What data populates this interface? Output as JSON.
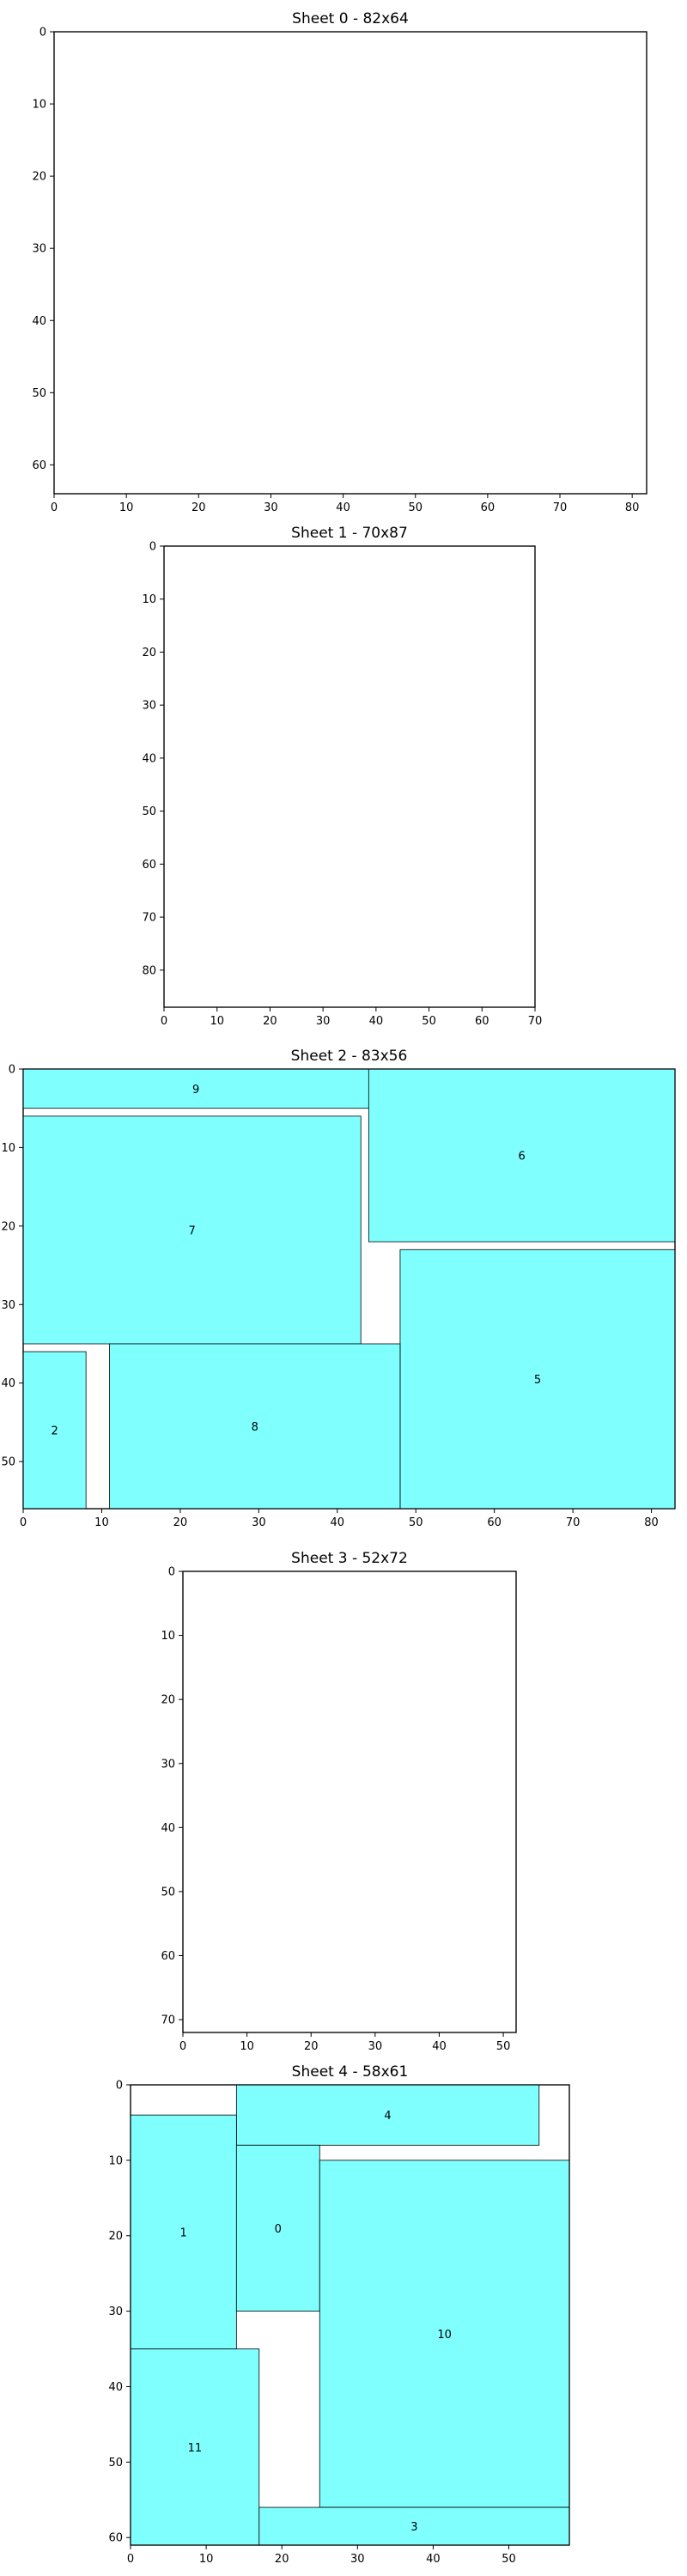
{
  "chart_data": {
    "type": "rectangle-packing",
    "piece_color": "#80ffff",
    "sheets": [
      {
        "title": "Sheet 0 - 82x64",
        "width": 82,
        "height": 64,
        "xticks": [
          0,
          10,
          20,
          30,
          40,
          50,
          60,
          70,
          80
        ],
        "yticks": [
          0,
          10,
          20,
          30,
          40,
          50,
          60
        ],
        "pieces": []
      },
      {
        "title": "Sheet 1 - 70x87",
        "width": 70,
        "height": 87,
        "xticks": [
          0,
          10,
          20,
          30,
          40,
          50,
          60,
          70
        ],
        "yticks": [
          0,
          10,
          20,
          30,
          40,
          50,
          60,
          70,
          80
        ],
        "pieces": []
      },
      {
        "title": "Sheet 2 - 83x56",
        "width": 83,
        "height": 56,
        "xticks": [
          0,
          10,
          20,
          30,
          40,
          50,
          60,
          70,
          80
        ],
        "yticks": [
          0,
          10,
          20,
          30,
          40,
          50
        ],
        "pieces": [
          {
            "label": "9",
            "x": 0,
            "y": 0,
            "w": 44,
            "h": 5
          },
          {
            "label": "6",
            "x": 44,
            "y": 0,
            "w": 39,
            "h": 22
          },
          {
            "label": "7",
            "x": 0,
            "y": 6,
            "w": 43,
            "h": 29
          },
          {
            "label": "5",
            "x": 48,
            "y": 23,
            "w": 35,
            "h": 33
          },
          {
            "label": "2",
            "x": 0,
            "y": 36,
            "w": 8,
            "h": 20
          },
          {
            "label": "8",
            "x": 11,
            "y": 35,
            "w": 37,
            "h": 21
          }
        ]
      },
      {
        "title": "Sheet 3 - 52x72",
        "width": 52,
        "height": 72,
        "xticks": [
          0,
          10,
          20,
          30,
          40,
          50
        ],
        "yticks": [
          0,
          10,
          20,
          30,
          40,
          50,
          60,
          70
        ],
        "pieces": []
      },
      {
        "title": "Sheet 4 - 58x61",
        "width": 58,
        "height": 61,
        "xticks": [
          0,
          10,
          20,
          30,
          40,
          50
        ],
        "yticks": [
          0,
          10,
          20,
          30,
          40,
          50,
          60
        ],
        "pieces": [
          {
            "label": "4",
            "x": 14,
            "y": 0,
            "w": 40,
            "h": 8
          },
          {
            "label": "1",
            "x": 0,
            "y": 4,
            "w": 14,
            "h": 31
          },
          {
            "label": "0",
            "x": 14,
            "y": 8,
            "w": 11,
            "h": 22
          },
          {
            "label": "10",
            "x": 25,
            "y": 10,
            "w": 33,
            "h": 46
          },
          {
            "label": "11",
            "x": 0,
            "y": 35,
            "w": 17,
            "h": 26
          },
          {
            "label": "3",
            "x": 17,
            "y": 56,
            "w": 41,
            "h": 5
          }
        ]
      }
    ]
  }
}
